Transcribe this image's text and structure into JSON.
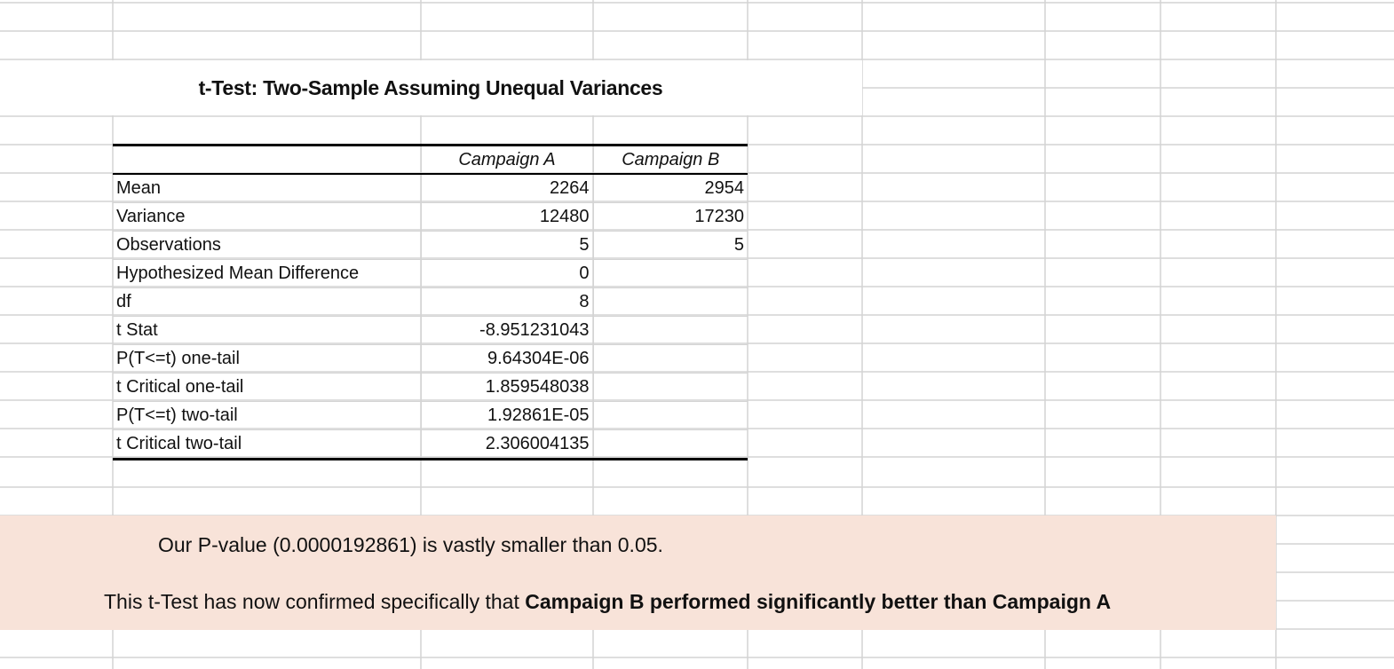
{
  "title": "t-Test: Two-Sample Assuming Unequal Variances",
  "columns": [
    "",
    "Campaign A",
    "Campaign B"
  ],
  "rows": [
    {
      "label": "Mean",
      "a": "2264",
      "b": "2954"
    },
    {
      "label": "Variance",
      "a": "12480",
      "b": "17230"
    },
    {
      "label": "Observations",
      "a": "5",
      "b": "5"
    },
    {
      "label": "Hypothesized Mean Difference",
      "a": "0",
      "b": ""
    },
    {
      "label": "df",
      "a": "8",
      "b": ""
    },
    {
      "label": "t Stat",
      "a": "-8.951231043",
      "b": ""
    },
    {
      "label": "P(T<=t) one-tail",
      "a": "9.64304E-06",
      "b": ""
    },
    {
      "label": "t Critical one-tail",
      "a": "1.859548038",
      "b": ""
    },
    {
      "label": "P(T<=t) two-tail",
      "a": "1.92861E-05",
      "b": ""
    },
    {
      "label": "t Critical two-tail",
      "a": "2.306004135",
      "b": ""
    }
  ],
  "note": {
    "line1": "Our P-value (0.0000192861) is vastly smaller than 0.05.",
    "line2_prefix": "This t-Test has now confirmed specifically that ",
    "line2_bold": "Campaign B performed significantly better than Campaign A"
  },
  "colors": {
    "gridline": "#d4d4d4",
    "note_background": "#f8e3d9",
    "table_border": "#000000"
  }
}
